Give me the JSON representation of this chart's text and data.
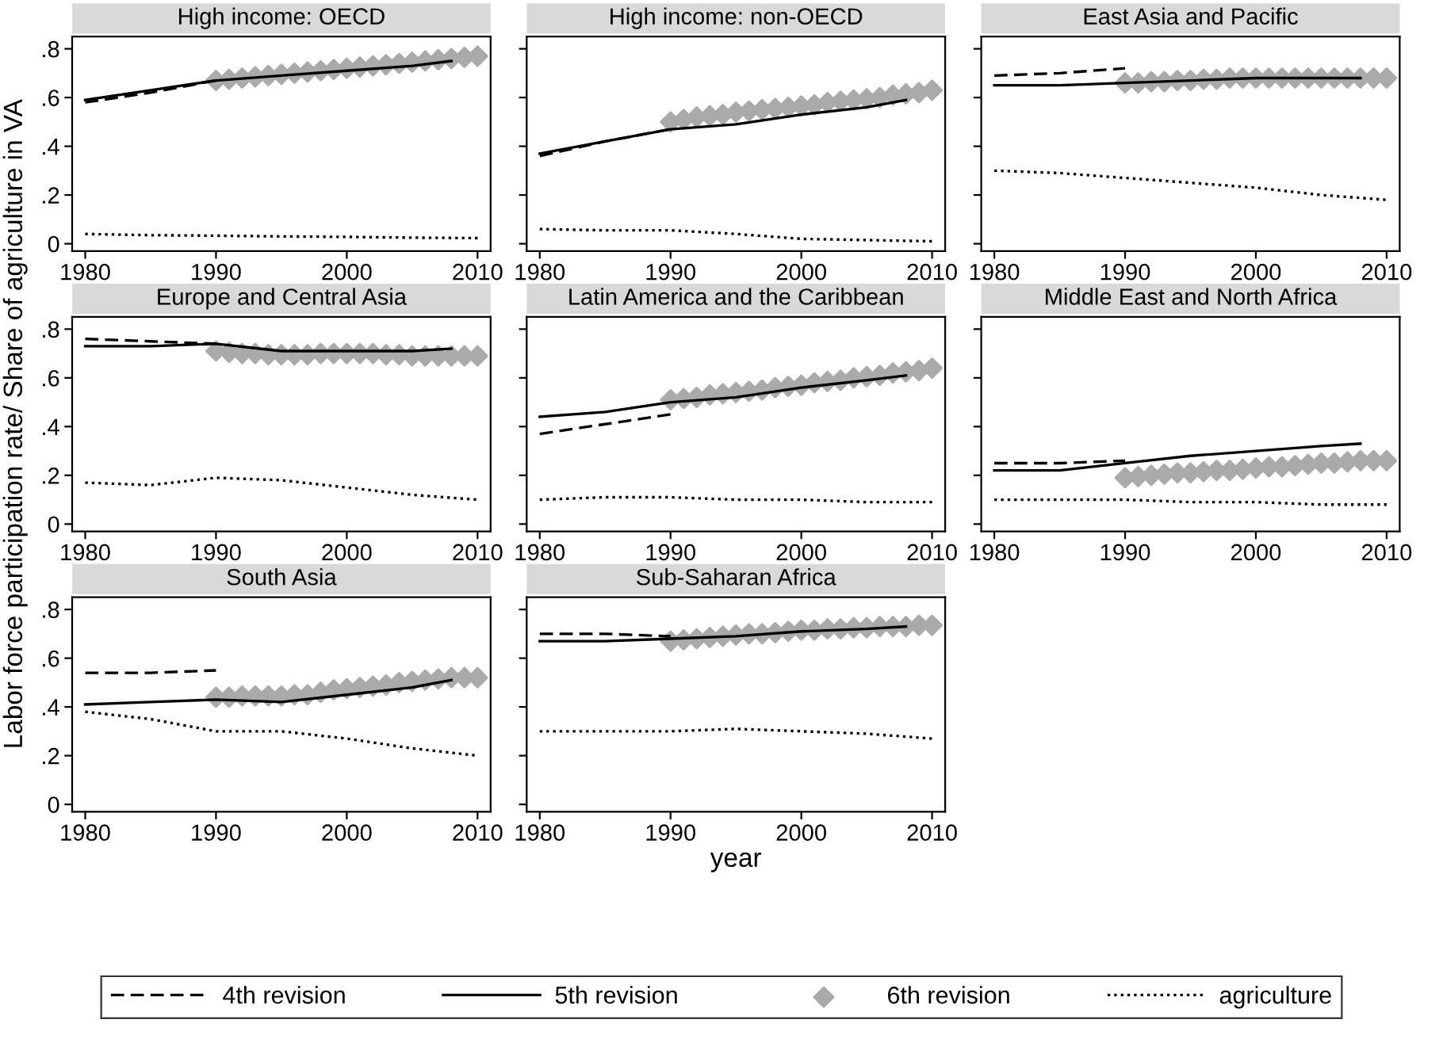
{
  "chart_data": [
    {
      "type": "line",
      "title": "High income: OECD",
      "xlim": [
        1979,
        2011
      ],
      "ylim": [
        -0.03,
        0.85
      ],
      "xticks": [
        1980,
        1990,
        2000,
        2010
      ],
      "yticks": [
        0,
        {
          "value": 0.2,
          "label": ".2"
        },
        {
          "value": 0.4,
          "label": ".4"
        },
        {
          "value": 0.6,
          "label": ".6"
        },
        {
          "value": 0.8,
          "label": ".8"
        }
      ],
      "grid": false,
      "legend": "bottom",
      "series": [
        {
          "name": "4th revision",
          "color": "#000000",
          "line_style": "dashed",
          "marker": "none",
          "x": [
            1980,
            1985,
            1990
          ],
          "values": [
            0.58,
            0.62,
            0.67
          ]
        },
        {
          "name": "5th revision",
          "color": "#000000",
          "line_style": "solid",
          "marker": "none",
          "x": [
            1980,
            1985,
            1990,
            1995,
            2000,
            2005,
            2008
          ],
          "values": [
            0.59,
            0.63,
            0.67,
            0.69,
            0.71,
            0.73,
            0.75
          ]
        },
        {
          "name": "6th revision",
          "type": "scatter",
          "color": "#aaaaaa",
          "marker": "diamond",
          "x": [
            1990,
            1991,
            1992,
            1993,
            1994,
            1995,
            1996,
            1997,
            1998,
            1999,
            2000,
            2001,
            2002,
            2003,
            2004,
            2005,
            2006,
            2007,
            2008,
            2009,
            2010
          ],
          "values": [
            0.67,
            0.675,
            0.68,
            0.685,
            0.69,
            0.695,
            0.7,
            0.705,
            0.71,
            0.715,
            0.72,
            0.725,
            0.73,
            0.735,
            0.74,
            0.745,
            0.75,
            0.755,
            0.76,
            0.765,
            0.77
          ]
        },
        {
          "name": "agriculture",
          "color": "#000000",
          "line_style": "dotted",
          "marker": "none",
          "x": [
            1980,
            1985,
            1990,
            1995,
            2000,
            2005,
            2010
          ],
          "values": [
            0.04,
            0.035,
            0.033,
            0.03,
            0.028,
            0.025,
            0.023
          ]
        }
      ]
    },
    {
      "type": "line",
      "title": "High income: non-OECD",
      "xlim": [
        1979,
        2011
      ],
      "ylim": [
        -0.03,
        0.85
      ],
      "xticks": [
        1980,
        1990,
        2000,
        2010
      ],
      "yticks": [
        {
          "value": 0,
          "label": null
        },
        {
          "value": 0.2,
          "label": null
        },
        {
          "value": 0.4,
          "label": null
        },
        {
          "value": 0.6,
          "label": null
        },
        {
          "value": 0.8,
          "label": null
        }
      ],
      "tick_labels": "x",
      "grid": false,
      "series": [
        {
          "color": "#000000",
          "line_style": "dashed",
          "marker": "none",
          "x": [
            1980,
            1985,
            1990
          ],
          "values": [
            0.36,
            0.42,
            0.47
          ]
        },
        {
          "color": "#000000",
          "line_style": "solid",
          "marker": "none",
          "x": [
            1980,
            1985,
            1990,
            1995,
            2000,
            2005,
            2008
          ],
          "values": [
            0.37,
            0.42,
            0.47,
            0.49,
            0.53,
            0.56,
            0.59
          ]
        },
        {
          "type": "scatter",
          "color": "#aaaaaa",
          "marker": "diamond",
          "x": [
            1990,
            1991,
            1992,
            1993,
            1994,
            1995,
            1996,
            1997,
            1998,
            1999,
            2000,
            2001,
            2002,
            2003,
            2004,
            2005,
            2006,
            2007,
            2008,
            2009,
            2010
          ],
          "values": [
            0.5,
            0.51,
            0.52,
            0.525,
            0.53,
            0.54,
            0.545,
            0.55,
            0.555,
            0.56,
            0.565,
            0.57,
            0.58,
            0.585,
            0.59,
            0.595,
            0.6,
            0.61,
            0.615,
            0.62,
            0.63
          ]
        },
        {
          "color": "#000000",
          "line_style": "dotted",
          "marker": "none",
          "x": [
            1980,
            1985,
            1990,
            1995,
            2000,
            2005,
            2010
          ],
          "values": [
            0.06,
            0.055,
            0.055,
            0.04,
            0.02,
            0.015,
            0.01
          ]
        }
      ]
    },
    {
      "type": "line",
      "title": "East Asia and Pacific",
      "xlim": [
        1979,
        2011
      ],
      "ylim": [
        -0.03,
        0.85
      ],
      "xticks": [
        1980,
        1990,
        2000,
        2010
      ],
      "yticks": [
        {
          "value": 0,
          "label": null
        },
        {
          "value": 0.2,
          "label": null
        },
        {
          "value": 0.4,
          "label": null
        },
        {
          "value": 0.6,
          "label": null
        },
        {
          "value": 0.8,
          "label": null
        }
      ],
      "tick_labels": "x",
      "grid": false,
      "series": [
        {
          "color": "#000000",
          "line_style": "dashed",
          "marker": "none",
          "x": [
            1980,
            1985,
            1990
          ],
          "values": [
            0.69,
            0.7,
            0.72
          ]
        },
        {
          "color": "#000000",
          "line_style": "solid",
          "marker": "none",
          "x": [
            1980,
            1985,
            1990,
            1995,
            2000,
            2005,
            2008
          ],
          "values": [
            0.65,
            0.65,
            0.66,
            0.67,
            0.68,
            0.68,
            0.68
          ]
        },
        {
          "type": "scatter",
          "color": "#aaaaaa",
          "marker": "diamond",
          "x": [
            1990,
            1991,
            1992,
            1993,
            1994,
            1995,
            1996,
            1997,
            1998,
            1999,
            2000,
            2001,
            2002,
            2003,
            2004,
            2005,
            2006,
            2007,
            2008,
            2009,
            2010
          ],
          "values": [
            0.66,
            0.66,
            0.665,
            0.665,
            0.67,
            0.67,
            0.675,
            0.675,
            0.68,
            0.68,
            0.68,
            0.68,
            0.68,
            0.68,
            0.68,
            0.68,
            0.68,
            0.68,
            0.68,
            0.68,
            0.68
          ]
        },
        {
          "color": "#000000",
          "line_style": "dotted",
          "marker": "none",
          "x": [
            1980,
            1985,
            1990,
            1995,
            2000,
            2005,
            2010
          ],
          "values": [
            0.3,
            0.29,
            0.27,
            0.25,
            0.23,
            0.2,
            0.18
          ]
        }
      ]
    },
    {
      "type": "line",
      "title": "Europe and Central Asia",
      "ylabel": "Labor force participation rate/ Share of agriculture in VA",
      "xlim": [
        1979,
        2011
      ],
      "ylim": [
        -0.03,
        0.85
      ],
      "xticks": [
        1980,
        1990,
        2000,
        2010
      ],
      "yticks": [
        0,
        {
          "value": 0.2,
          "label": ".2"
        },
        {
          "value": 0.4,
          "label": ".4"
        },
        {
          "value": 0.6,
          "label": ".6"
        },
        {
          "value": 0.8,
          "label": ".8"
        }
      ],
      "grid": false,
      "series": [
        {
          "color": "#000000",
          "line_style": "dashed",
          "marker": "none",
          "x": [
            1980,
            1985,
            1990
          ],
          "values": [
            0.76,
            0.75,
            0.74
          ]
        },
        {
          "color": "#000000",
          "line_style": "solid",
          "marker": "none",
          "x": [
            1980,
            1985,
            1990,
            1995,
            2000,
            2005,
            2008
          ],
          "values": [
            0.73,
            0.73,
            0.74,
            0.71,
            0.71,
            0.71,
            0.72
          ]
        },
        {
          "type": "scatter",
          "color": "#aaaaaa",
          "marker": "diamond",
          "x": [
            1990,
            1991,
            1992,
            1993,
            1994,
            1995,
            1996,
            1997,
            1998,
            1999,
            2000,
            2001,
            2002,
            2003,
            2004,
            2005,
            2006,
            2007,
            2008,
            2009,
            2010
          ],
          "values": [
            0.71,
            0.705,
            0.7,
            0.7,
            0.695,
            0.695,
            0.695,
            0.695,
            0.7,
            0.7,
            0.7,
            0.7,
            0.7,
            0.695,
            0.695,
            0.69,
            0.69,
            0.69,
            0.69,
            0.69,
            0.69
          ]
        },
        {
          "color": "#000000",
          "line_style": "dotted",
          "marker": "none",
          "x": [
            1980,
            1985,
            1990,
            1995,
            2000,
            2005,
            2010
          ],
          "values": [
            0.17,
            0.16,
            0.19,
            0.18,
            0.15,
            0.12,
            0.1
          ]
        }
      ]
    },
    {
      "type": "line",
      "title": "Latin America and the Caribbean",
      "xlim": [
        1979,
        2011
      ],
      "ylim": [
        -0.03,
        0.85
      ],
      "xticks": [
        1980,
        1990,
        2000,
        2010
      ],
      "yticks": [
        {
          "value": 0,
          "label": null
        },
        {
          "value": 0.2,
          "label": null
        },
        {
          "value": 0.4,
          "label": null
        },
        {
          "value": 0.6,
          "label": null
        },
        {
          "value": 0.8,
          "label": null
        }
      ],
      "tick_labels": "x",
      "grid": false,
      "series": [
        {
          "color": "#000000",
          "line_style": "dashed",
          "marker": "none",
          "x": [
            1980,
            1985,
            1990
          ],
          "values": [
            0.37,
            0.41,
            0.45
          ]
        },
        {
          "color": "#000000",
          "line_style": "solid",
          "marker": "none",
          "x": [
            1980,
            1985,
            1990,
            1995,
            2000,
            2005,
            2008
          ],
          "values": [
            0.44,
            0.46,
            0.5,
            0.52,
            0.56,
            0.59,
            0.61
          ]
        },
        {
          "type": "scatter",
          "color": "#aaaaaa",
          "marker": "diamond",
          "x": [
            1990,
            1991,
            1992,
            1993,
            1994,
            1995,
            1996,
            1997,
            1998,
            1999,
            2000,
            2001,
            2002,
            2003,
            2004,
            2005,
            2006,
            2007,
            2008,
            2009,
            2010
          ],
          "values": [
            0.51,
            0.515,
            0.52,
            0.53,
            0.535,
            0.54,
            0.545,
            0.55,
            0.56,
            0.565,
            0.57,
            0.58,
            0.585,
            0.59,
            0.6,
            0.605,
            0.61,
            0.62,
            0.625,
            0.63,
            0.64
          ]
        },
        {
          "color": "#000000",
          "line_style": "dotted",
          "marker": "none",
          "x": [
            1980,
            1985,
            1990,
            1995,
            2000,
            2005,
            2010
          ],
          "values": [
            0.1,
            0.11,
            0.11,
            0.1,
            0.1,
            0.09,
            0.09
          ]
        }
      ]
    },
    {
      "type": "line",
      "title": "Middle East and North Africa",
      "xlim": [
        1979,
        2011
      ],
      "ylim": [
        -0.03,
        0.85
      ],
      "xticks": [
        1980,
        1990,
        2000,
        2010
      ],
      "yticks": [
        {
          "value": 0,
          "label": null
        },
        {
          "value": 0.2,
          "label": null
        },
        {
          "value": 0.4,
          "label": null
        },
        {
          "value": 0.6,
          "label": null
        },
        {
          "value": 0.8,
          "label": null
        }
      ],
      "tick_labels": "x",
      "grid": false,
      "series": [
        {
          "color": "#000000",
          "line_style": "dashed",
          "marker": "none",
          "x": [
            1980,
            1985,
            1990
          ],
          "values": [
            0.25,
            0.25,
            0.26
          ]
        },
        {
          "color": "#000000",
          "line_style": "solid",
          "marker": "none",
          "x": [
            1980,
            1985,
            1990,
            1995,
            2000,
            2005,
            2008
          ],
          "values": [
            0.22,
            0.22,
            0.25,
            0.28,
            0.3,
            0.32,
            0.33
          ]
        },
        {
          "type": "scatter",
          "color": "#aaaaaa",
          "marker": "diamond",
          "x": [
            1990,
            1991,
            1992,
            1993,
            1994,
            1995,
            1996,
            1997,
            1998,
            1999,
            2000,
            2001,
            2002,
            2003,
            2004,
            2005,
            2006,
            2007,
            2008,
            2009,
            2010
          ],
          "values": [
            0.19,
            0.195,
            0.2,
            0.205,
            0.21,
            0.21,
            0.215,
            0.22,
            0.22,
            0.225,
            0.23,
            0.235,
            0.235,
            0.24,
            0.245,
            0.25,
            0.25,
            0.255,
            0.26,
            0.26,
            0.26
          ]
        },
        {
          "color": "#000000",
          "line_style": "dotted",
          "marker": "none",
          "x": [
            1980,
            1985,
            1990,
            1995,
            2000,
            2005,
            2010
          ],
          "values": [
            0.1,
            0.1,
            0.1,
            0.09,
            0.09,
            0.08,
            0.08
          ]
        }
      ]
    },
    {
      "type": "line",
      "title": "South Asia",
      "xlim": [
        1979,
        2011
      ],
      "ylim": [
        -0.03,
        0.85
      ],
      "xticks": [
        1980,
        1990,
        2000,
        2010
      ],
      "yticks": [
        0,
        {
          "value": 0.2,
          "label": ".2"
        },
        {
          "value": 0.4,
          "label": ".4"
        },
        {
          "value": 0.6,
          "label": ".6"
        },
        {
          "value": 0.8,
          "label": ".8"
        }
      ],
      "grid": false,
      "series": [
        {
          "color": "#000000",
          "line_style": "dashed",
          "marker": "none",
          "x": [
            1980,
            1985,
            1990
          ],
          "values": [
            0.54,
            0.54,
            0.55
          ]
        },
        {
          "color": "#000000",
          "line_style": "solid",
          "marker": "none",
          "x": [
            1980,
            1985,
            1990,
            1995,
            2000,
            2005,
            2008
          ],
          "values": [
            0.41,
            0.42,
            0.43,
            0.42,
            0.45,
            0.48,
            0.51
          ]
        },
        {
          "type": "scatter",
          "color": "#aaaaaa",
          "marker": "diamond",
          "x": [
            1990,
            1991,
            1992,
            1993,
            1994,
            1995,
            1996,
            1997,
            1998,
            1999,
            2000,
            2001,
            2002,
            2003,
            2004,
            2005,
            2006,
            2007,
            2008,
            2009,
            2010
          ],
          "values": [
            0.44,
            0.44,
            0.445,
            0.445,
            0.445,
            0.445,
            0.45,
            0.45,
            0.46,
            0.47,
            0.475,
            0.48,
            0.485,
            0.49,
            0.5,
            0.505,
            0.51,
            0.515,
            0.52,
            0.52,
            0.52
          ]
        },
        {
          "color": "#000000",
          "line_style": "dotted",
          "marker": "none",
          "x": [
            1980,
            1985,
            1990,
            1995,
            2000,
            2005,
            2010
          ],
          "values": [
            0.38,
            0.35,
            0.3,
            0.3,
            0.27,
            0.23,
            0.2
          ]
        }
      ]
    },
    {
      "type": "line",
      "title": "Sub-Saharan Africa",
      "xlabel": "year",
      "xlim": [
        1979,
        2011
      ],
      "ylim": [
        -0.03,
        0.85
      ],
      "xticks": [
        1980,
        1990,
        2000,
        2010
      ],
      "yticks": [
        {
          "value": 0,
          "label": null
        },
        {
          "value": 0.2,
          "label": null
        },
        {
          "value": 0.4,
          "label": null
        },
        {
          "value": 0.6,
          "label": null
        },
        {
          "value": 0.8,
          "label": null
        }
      ],
      "tick_labels": "x",
      "grid": false,
      "series": [
        {
          "color": "#000000",
          "line_style": "dashed",
          "marker": "none",
          "x": [
            1980,
            1985,
            1990
          ],
          "values": [
            0.7,
            0.7,
            0.69
          ]
        },
        {
          "color": "#000000",
          "line_style": "solid",
          "marker": "none",
          "x": [
            1980,
            1985,
            1990,
            1995,
            2000,
            2005,
            2008
          ],
          "values": [
            0.67,
            0.67,
            0.68,
            0.69,
            0.71,
            0.72,
            0.73
          ]
        },
        {
          "type": "scatter",
          "color": "#aaaaaa",
          "marker": "diamond",
          "x": [
            1990,
            1991,
            1992,
            1993,
            1994,
            1995,
            1996,
            1997,
            1998,
            1999,
            2000,
            2001,
            2002,
            2003,
            2004,
            2005,
            2006,
            2007,
            2008,
            2009,
            2010
          ],
          "values": [
            0.67,
            0.675,
            0.68,
            0.685,
            0.69,
            0.695,
            0.7,
            0.7,
            0.705,
            0.71,
            0.715,
            0.715,
            0.72,
            0.72,
            0.725,
            0.725,
            0.73,
            0.73,
            0.73,
            0.735,
            0.735
          ]
        },
        {
          "color": "#000000",
          "line_style": "dotted",
          "marker": "none",
          "x": [
            1980,
            1985,
            1990,
            1995,
            2000,
            2005,
            2010
          ],
          "values": [
            0.3,
            0.3,
            0.3,
            0.31,
            0.3,
            0.29,
            0.27
          ]
        }
      ]
    }
  ]
}
